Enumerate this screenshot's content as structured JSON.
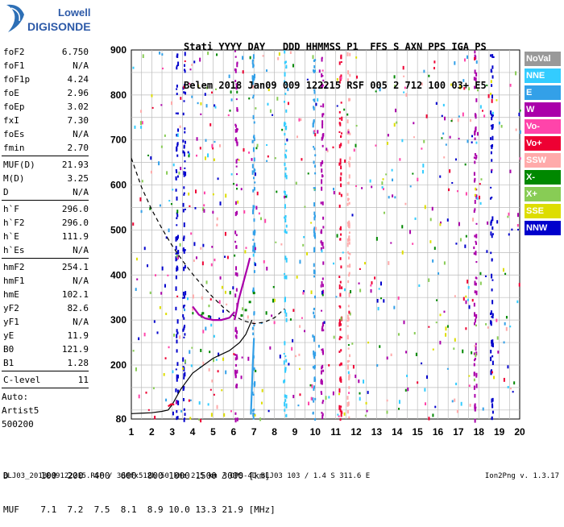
{
  "logo": {
    "top": "Lowell",
    "bottom": "DIGISONDE"
  },
  "header": {
    "line1": "Stati YYYY DAY   DDD HHMMSS P1  FFS S AXN PPS IGA PS",
    "line2": "Belem 2018 Jan09 009 122215 RSF 005 2 712 100 03+ E5"
  },
  "params": {
    "group1": [
      {
        "name": "foF2",
        "value": "6.750"
      },
      {
        "name": "foF1",
        "value": "N/A"
      },
      {
        "name": "foF1p",
        "value": "4.24"
      },
      {
        "name": "foE",
        "value": "2.96"
      },
      {
        "name": "foEp",
        "value": "3.02"
      },
      {
        "name": "fxI",
        "value": "7.30"
      },
      {
        "name": "foEs",
        "value": "N/A"
      },
      {
        "name": "fmin",
        "value": "2.70"
      }
    ],
    "group2": [
      {
        "name": "MUF(D)",
        "value": "21.93"
      },
      {
        "name": "M(D)",
        "value": "3.25"
      },
      {
        "name": "D",
        "value": "N/A"
      }
    ],
    "group3": [
      {
        "name": "h`F",
        "value": "296.0"
      },
      {
        "name": "h`F2",
        "value": "296.0"
      },
      {
        "name": "h`E",
        "value": "111.9"
      },
      {
        "name": "h`Es",
        "value": "N/A"
      }
    ],
    "group4": [
      {
        "name": "hmF2",
        "value": "254.1"
      },
      {
        "name": "hmF1",
        "value": "N/A"
      },
      {
        "name": "hmE",
        "value": "102.1"
      },
      {
        "name": "yF2",
        "value": "82.6"
      },
      {
        "name": "yF1",
        "value": "N/A"
      },
      {
        "name": "yE",
        "value": "11.9"
      },
      {
        "name": "B0",
        "value": "121.9"
      },
      {
        "name": "B1",
        "value": "1.28"
      }
    ],
    "group5": [
      {
        "name": "C-level",
        "value": "11"
      }
    ],
    "auto": {
      "l1": "Auto:",
      "l2": "Artist5",
      "l3": "500200"
    }
  },
  "legend": [
    {
      "label": "NoVal",
      "color": "#999999"
    },
    {
      "label": "NNE",
      "color": "#33ccff"
    },
    {
      "label": "E",
      "color": "#33a0e8"
    },
    {
      "label": "W",
      "color": "#aa00aa"
    },
    {
      "label": "Vo-",
      "color": "#ff44aa"
    },
    {
      "label": "Vo+",
      "color": "#ee0033"
    },
    {
      "label": "SSW",
      "color": "#ffaaaa"
    },
    {
      "label": "X-",
      "color": "#008800"
    },
    {
      "label": "X+",
      "color": "#88cc55"
    },
    {
      "label": "SSE",
      "color": "#dddd00"
    },
    {
      "label": "NNW",
      "color": "#0000cc"
    }
  ],
  "dtable": {
    "line1": "D      100  200  400  600  800 1000 1500 3000 [km]",
    "line2": "MUF    7.1  7.2  7.5  8.1  8.9 10.0 13.3 21.9 [MHz]"
  },
  "footer": "BLJ03_2018009122215.RSF / 380fx512h 50 kHz 2.5 km / DPS-4D BLJ03 103 / 1.4 S 311.6 E",
  "version": "Ion2Png v. 1.3.17",
  "chart_data": {
    "type": "scatter",
    "xlim": [
      1,
      20
    ],
    "ylim": [
      80,
      900
    ],
    "xticks": [
      1,
      2,
      3,
      4,
      5,
      6,
      7,
      8,
      9,
      10,
      11,
      12,
      13,
      14,
      15,
      16,
      17,
      18,
      19,
      20
    ],
    "yticks": [
      80,
      200,
      300,
      400,
      500,
      600,
      700,
      800,
      900
    ],
    "grid": true,
    "series": [
      {
        "mode": "W",
        "color": "#aa00aa",
        "x": [
          6.05,
          6.15,
          6.25,
          6.4,
          6.55,
          6.7,
          6.8
        ],
        "y": [
          300,
          320,
          345,
          370,
          395,
          420,
          438
        ]
      },
      {
        "mode": "W",
        "color": "#aa00aa",
        "x": [
          4.0,
          4.3,
          4.6,
          5.0,
          5.4,
          5.8,
          6.05
        ],
        "y": [
          330,
          312,
          304,
          300,
          300,
          305,
          318
        ]
      },
      {
        "mode": "X-",
        "color": "#008800",
        "x": [
          4.5,
          4.8,
          6.4,
          6.6,
          6.8,
          7.0
        ],
        "y": [
          315,
          308,
          310,
          322,
          340,
          360
        ]
      },
      {
        "mode": "E",
        "color": "#33a0e8",
        "x": [
          6.85,
          6.9,
          6.95,
          7.0
        ],
        "y": [
          90,
          150,
          210,
          260
        ]
      },
      {
        "mode": "Vo+",
        "color": "#ee0033",
        "x": [
          2.8,
          2.95,
          3.1
        ],
        "y": [
          108,
          113,
          112
        ]
      }
    ],
    "profile": {
      "x": [
        1.0,
        1.5,
        2.0,
        2.5,
        2.8,
        3.0,
        3.4,
        4.0,
        5.0,
        5.8,
        6.3,
        6.6,
        6.9
      ],
      "y": [
        92,
        93,
        94,
        97,
        100,
        112,
        145,
        182,
        215,
        232,
        250,
        268,
        300
      ]
    },
    "muf_curve": {
      "x": [
        1.0,
        1.5,
        2.0,
        2.5,
        3.0,
        3.5,
        4.0,
        4.5,
        5.0,
        5.5,
        6.0,
        6.5,
        7.0,
        7.5,
        8.0,
        8.5
      ],
      "y": [
        660,
        595,
        545,
        503,
        465,
        432,
        402,
        375,
        350,
        328,
        310,
        298,
        292,
        295,
        305,
        325
      ]
    }
  }
}
